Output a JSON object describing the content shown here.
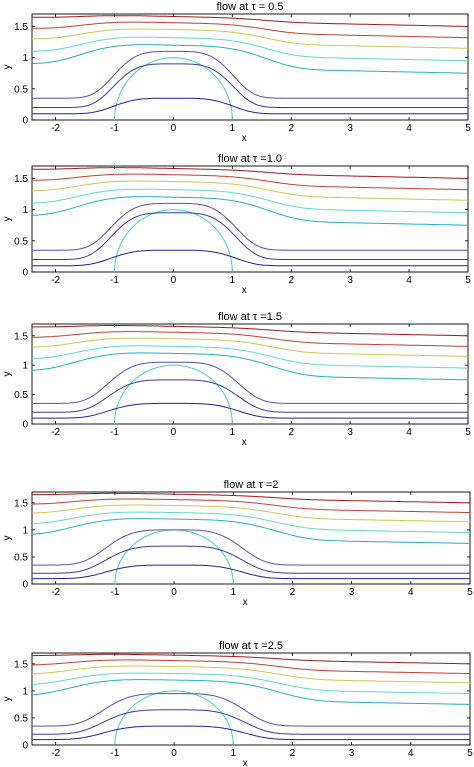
{
  "figure": {
    "panels": [
      {
        "title": "flow at  τ = 0.5",
        "xlabel": "x",
        "ylabel": "y"
      },
      {
        "title": "flow at  τ =1.0",
        "xlabel": "x",
        "ylabel": "y"
      },
      {
        "title": "flow at  τ =1.5",
        "xlabel": "x",
        "ylabel": "y"
      },
      {
        "title": "flow at  τ =2",
        "xlabel": "x",
        "ylabel": "y"
      },
      {
        "title": "flow at  τ =2.5",
        "xlabel": "x",
        "ylabel": "y"
      }
    ],
    "colors": {
      "level_0": "#2020a0",
      "level_1": "#3838a8",
      "level_2": "#5050b8",
      "level_3": "#20b0c8",
      "level_4": "#60d8d0",
      "level_5": "#c8c850",
      "level_6": "#e0a040",
      "level_7": "#c04030",
      "level_8": "#a01818",
      "circle": "#40d0d0"
    }
  },
  "chart_data": [
    {
      "type": "line",
      "title": "flow at  τ = 0.5",
      "xlabel": "x",
      "ylabel": "y",
      "xlim": [
        -2.4,
        5
      ],
      "ylim": [
        0,
        1.7
      ],
      "xticks": [
        "-2",
        "-1",
        "0",
        "1",
        "2",
        "3",
        "4",
        "5"
      ],
      "yticks": [
        "0",
        "0.5",
        "1",
        "1.5"
      ],
      "tau": 0.5,
      "body_radius": 1.0,
      "series": [
        {
          "y_far": 0.1,
          "bubble_height": 0.35,
          "color_key": "level_0"
        },
        {
          "y_far": 0.2,
          "bubble_height": 0.9,
          "color_key": "level_1"
        },
        {
          "y_far": 0.35,
          "bubble_height": 1.1,
          "color_key": "level_2"
        },
        {
          "y_far": 0.85,
          "bubble_height": 1.2,
          "color_key": "level_3"
        },
        {
          "y_far": 1.05,
          "bubble_height": 1.32,
          "color_key": "level_4"
        },
        {
          "y_far": 1.25,
          "bubble_height": 1.45,
          "color_key": "level_5"
        },
        {
          "y_far": 1.42,
          "bubble_height": 1.56,
          "color_key": "level_7"
        },
        {
          "y_far": 1.6,
          "bubble_height": 1.66,
          "color_key": "level_8"
        }
      ]
    },
    {
      "type": "line",
      "title": "flow at  τ =1.0",
      "xlabel": "x",
      "ylabel": "y",
      "xlim": [
        -2.4,
        5
      ],
      "ylim": [
        0,
        1.7
      ],
      "xticks": [
        "-2",
        "-1",
        "0",
        "1",
        "2",
        "3",
        "4",
        "5"
      ],
      "yticks": [
        "0",
        "0.5",
        "1",
        "1.5"
      ],
      "tau": 1.0,
      "body_radius": 1.0,
      "series": [
        {
          "y_far": 0.1,
          "bubble_height": 0.35,
          "color_key": "level_0"
        },
        {
          "y_far": 0.2,
          "bubble_height": 0.95,
          "color_key": "level_1"
        },
        {
          "y_far": 0.35,
          "bubble_height": 1.1,
          "color_key": "level_2"
        },
        {
          "y_far": 0.85,
          "bubble_height": 1.2,
          "color_key": "level_3"
        },
        {
          "y_far": 1.05,
          "bubble_height": 1.32,
          "color_key": "level_4"
        },
        {
          "y_far": 1.25,
          "bubble_height": 1.45,
          "color_key": "level_5"
        },
        {
          "y_far": 1.42,
          "bubble_height": 1.56,
          "color_key": "level_7"
        },
        {
          "y_far": 1.6,
          "bubble_height": 1.66,
          "color_key": "level_8"
        }
      ]
    },
    {
      "type": "line",
      "title": "flow at  τ =1.5",
      "xlabel": "x",
      "ylabel": "y",
      "xlim": [
        -2.4,
        5
      ],
      "ylim": [
        0,
        1.7
      ],
      "xticks": [
        "-2",
        "-1",
        "0",
        "1",
        "2",
        "3",
        "4",
        "5"
      ],
      "yticks": [
        "0",
        "0.5",
        "1",
        "1.5"
      ],
      "tau": 1.5,
      "body_radius": 1.0,
      "series": [
        {
          "y_far": 0.1,
          "bubble_height": 0.35,
          "color_key": "level_0"
        },
        {
          "y_far": 0.2,
          "bubble_height": 0.75,
          "color_key": "level_1"
        },
        {
          "y_far": 0.35,
          "bubble_height": 1.05,
          "color_key": "level_2"
        },
        {
          "y_far": 0.85,
          "bubble_height": 1.2,
          "color_key": "level_3"
        },
        {
          "y_far": 1.05,
          "bubble_height": 1.32,
          "color_key": "level_4"
        },
        {
          "y_far": 1.25,
          "bubble_height": 1.45,
          "color_key": "level_5"
        },
        {
          "y_far": 1.42,
          "bubble_height": 1.56,
          "color_key": "level_7"
        },
        {
          "y_far": 1.6,
          "bubble_height": 1.66,
          "color_key": "level_8"
        }
      ]
    },
    {
      "type": "line",
      "title": "flow at  τ =2",
      "xlabel": "x",
      "ylabel": "y",
      "xlim": [
        -2.4,
        5
      ],
      "ylim": [
        0,
        1.7
      ],
      "xticks": [
        "-2",
        "-1",
        "0",
        "1",
        "2",
        "3",
        "4",
        "5"
      ],
      "yticks": [
        "0",
        "0.5",
        "1",
        "1.5"
      ],
      "tau": 2.0,
      "body_radius": 1.0,
      "series": [
        {
          "y_far": 0.1,
          "bubble_height": 0.35,
          "color_key": "level_0"
        },
        {
          "y_far": 0.2,
          "bubble_height": 0.7,
          "color_key": "level_1"
        },
        {
          "y_far": 0.35,
          "bubble_height": 1.0,
          "color_key": "level_2"
        },
        {
          "y_far": 0.85,
          "bubble_height": 1.2,
          "color_key": "level_3"
        },
        {
          "y_far": 1.05,
          "bubble_height": 1.32,
          "color_key": "level_4"
        },
        {
          "y_far": 1.25,
          "bubble_height": 1.45,
          "color_key": "level_5"
        },
        {
          "y_far": 1.42,
          "bubble_height": 1.56,
          "color_key": "level_7"
        },
        {
          "y_far": 1.6,
          "bubble_height": 1.66,
          "color_key": "level_8"
        }
      ]
    },
    {
      "type": "line",
      "title": "flow at  τ =2.5",
      "xlabel": "x",
      "ylabel": "y",
      "xlim": [
        -2.4,
        5
      ],
      "ylim": [
        0,
        1.7
      ],
      "xticks": [
        "-2",
        "-1",
        "0",
        "1",
        "2",
        "3",
        "4",
        "5"
      ],
      "yticks": [
        "0",
        "0.5",
        "1",
        "1.5"
      ],
      "tau": 2.5,
      "body_radius": 1.0,
      "series": [
        {
          "y_far": 0.1,
          "bubble_height": 0.35,
          "color_key": "level_0"
        },
        {
          "y_far": 0.2,
          "bubble_height": 0.65,
          "color_key": "level_1"
        },
        {
          "y_far": 0.35,
          "bubble_height": 0.95,
          "color_key": "level_2"
        },
        {
          "y_far": 0.85,
          "bubble_height": 1.2,
          "color_key": "level_3"
        },
        {
          "y_far": 1.05,
          "bubble_height": 1.32,
          "color_key": "level_4"
        },
        {
          "y_far": 1.25,
          "bubble_height": 1.45,
          "color_key": "level_5"
        },
        {
          "y_far": 1.42,
          "bubble_height": 1.56,
          "color_key": "level_7"
        },
        {
          "y_far": 1.6,
          "bubble_height": 1.66,
          "color_key": "level_8"
        }
      ]
    }
  ]
}
